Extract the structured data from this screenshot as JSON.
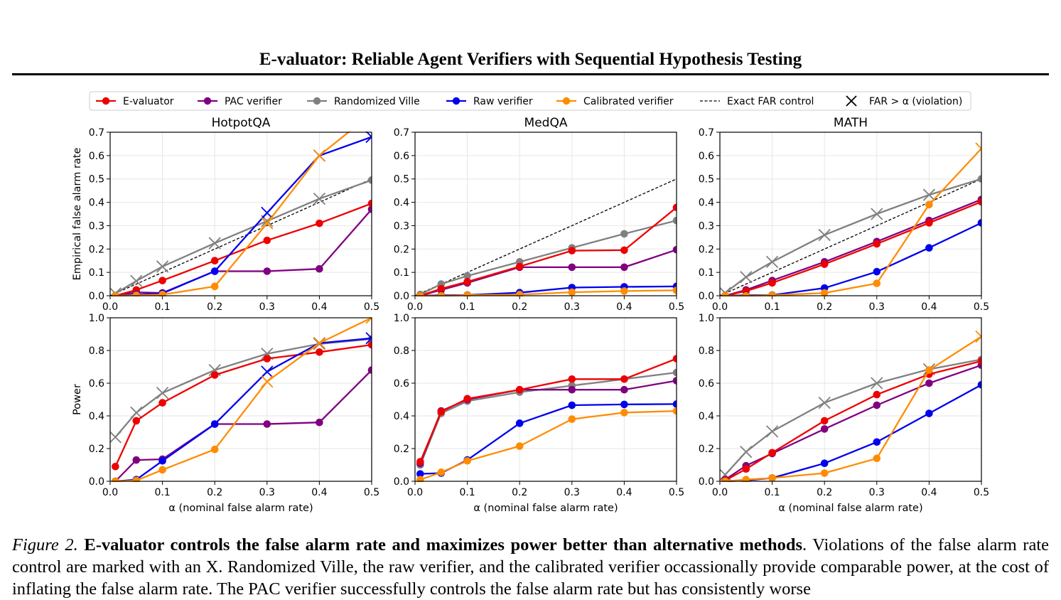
{
  "paper": {
    "running_title": "E-valuator: Reliable Agent Verifiers with Sequential Hypothesis Testing"
  },
  "caption": {
    "label": "Figure 2.",
    "bold": "E-valuator controls the false alarm rate and maximizes power better than alternative methods",
    "text": ". Violations of the false alarm rate control are marked with an X. Randomized Ville, the raw verifier, and the calibrated verifier occassionally provide comparable power, at the cost of inflating the false alarm rate. The PAC verifier successfully controls the false alarm rate but has consistently worse"
  },
  "legend": [
    {
      "label": "E-valuator",
      "color": "#ee0000",
      "kind": "line-marker"
    },
    {
      "label": "PAC verifier",
      "color": "#800080",
      "kind": "line-marker"
    },
    {
      "label": "Randomized Ville",
      "color": "#808080",
      "kind": "line-marker"
    },
    {
      "label": "Raw verifier",
      "color": "#0000ee",
      "kind": "line-marker"
    },
    {
      "label": "Calibrated verifier",
      "color": "#ff8c00",
      "kind": "line-marker"
    },
    {
      "label": "Exact FAR control",
      "color": "#000000",
      "kind": "dashed"
    },
    {
      "label": "FAR > α (violation)",
      "color": "#000000",
      "kind": "x"
    }
  ],
  "chart_data": [
    {
      "type": "line",
      "row": 0,
      "col": 0,
      "title": "HotpotQA",
      "xlabel": "",
      "ylabel": "Empirical false alarm rate",
      "xlim": [
        0,
        0.5
      ],
      "ylim": [
        0,
        0.7
      ],
      "xticks": [
        "0.0",
        "0.1",
        "0.2",
        "0.3",
        "0.4",
        "0.5"
      ],
      "yticks": [
        "0.0",
        "0.1",
        "0.2",
        "0.3",
        "0.4",
        "0.5",
        "0.6",
        "0.7"
      ],
      "x": [
        0.01,
        0.05,
        0.1,
        0.2,
        0.3,
        0.4,
        0.5
      ],
      "diagonal": true,
      "series": [
        {
          "name": "Randomized Ville",
          "color": "#808080",
          "values": [
            0.01,
            0.063,
            0.125,
            0.225,
            0.32,
            0.415,
            0.495
          ],
          "violations": [
            1,
            1,
            1,
            1,
            1,
            1,
            0
          ]
        },
        {
          "name": "PAC verifier",
          "color": "#800080",
          "values": [
            0.0,
            0.015,
            0.012,
            0.105,
            0.105,
            0.115,
            0.37
          ],
          "violations": [
            0,
            0,
            0,
            0,
            0,
            0,
            0
          ]
        },
        {
          "name": "E-valuator",
          "color": "#ee0000",
          "values": [
            0.0,
            0.025,
            0.065,
            0.15,
            0.237,
            0.31,
            0.395
          ],
          "violations": [
            0,
            0,
            0,
            0,
            0,
            0,
            0
          ]
        },
        {
          "name": "Raw verifier",
          "color": "#0000ee",
          "values": [
            0.0,
            0.005,
            0.01,
            0.105,
            0.355,
            0.6,
            0.68
          ],
          "violations": [
            0,
            0,
            0,
            0,
            1,
            1,
            1
          ]
        },
        {
          "name": "Calibrated verifier",
          "color": "#ff8c00",
          "values": [
            0.0,
            0.002,
            0.005,
            0.04,
            0.31,
            0.6,
            0.78
          ],
          "violations": [
            0,
            0,
            0,
            0,
            1,
            1,
            1
          ]
        }
      ]
    },
    {
      "type": "line",
      "row": 0,
      "col": 1,
      "title": "MedQA",
      "xlabel": "",
      "ylabel": "",
      "xlim": [
        0,
        0.5
      ],
      "ylim": [
        0,
        0.7
      ],
      "xticks": [
        "0.0",
        "0.1",
        "0.2",
        "0.3",
        "0.4",
        "0.5"
      ],
      "yticks": [
        "0.0",
        "0.1",
        "0.2",
        "0.3",
        "0.4",
        "0.5",
        "0.6",
        "0.7"
      ],
      "x": [
        0.01,
        0.05,
        0.1,
        0.2,
        0.3,
        0.4,
        0.5
      ],
      "diagonal": true,
      "series": [
        {
          "name": "Randomized Ville",
          "color": "#808080",
          "values": [
            0.005,
            0.05,
            0.085,
            0.145,
            0.205,
            0.265,
            0.322
          ],
          "violations": [
            0,
            0,
            0,
            0,
            0,
            0,
            0
          ]
        },
        {
          "name": "PAC verifier",
          "color": "#800080",
          "values": [
            0.0,
            0.025,
            0.055,
            0.122,
            0.122,
            0.122,
            0.197
          ],
          "violations": [
            0,
            0,
            0,
            0,
            0,
            0,
            0
          ]
        },
        {
          "name": "E-valuator",
          "color": "#ee0000",
          "values": [
            0.0,
            0.03,
            0.06,
            0.125,
            0.193,
            0.195,
            0.378
          ],
          "violations": [
            0,
            0,
            0,
            0,
            0,
            0,
            0
          ]
        },
        {
          "name": "Raw verifier",
          "color": "#0000ee",
          "values": [
            0.0,
            0.002,
            0.003,
            0.013,
            0.035,
            0.038,
            0.04
          ],
          "violations": [
            0,
            0,
            0,
            0,
            0,
            0,
            0
          ]
        },
        {
          "name": "Calibrated verifier",
          "color": "#ff8c00",
          "values": [
            0.0,
            0.0,
            0.002,
            0.005,
            0.015,
            0.02,
            0.023
          ],
          "violations": [
            0,
            0,
            0,
            0,
            0,
            0,
            0
          ]
        }
      ]
    },
    {
      "type": "line",
      "row": 0,
      "col": 2,
      "title": "MATH",
      "xlabel": "",
      "ylabel": "",
      "xlim": [
        0,
        0.5
      ],
      "ylim": [
        0,
        0.7
      ],
      "xticks": [
        "0.0",
        "0.1",
        "0.2",
        "0.3",
        "0.4",
        "0.5"
      ],
      "yticks": [
        "0.0",
        "0.1",
        "0.2",
        "0.3",
        "0.4",
        "0.5",
        "0.6",
        "0.7"
      ],
      "x": [
        0.01,
        0.05,
        0.1,
        0.2,
        0.3,
        0.4,
        0.5
      ],
      "diagonal": true,
      "series": [
        {
          "name": "Randomized Ville",
          "color": "#808080",
          "values": [
            0.012,
            0.08,
            0.145,
            0.26,
            0.35,
            0.432,
            0.5
          ],
          "violations": [
            1,
            1,
            1,
            1,
            1,
            1,
            0
          ]
        },
        {
          "name": "PAC verifier",
          "color": "#800080",
          "values": [
            0.0,
            0.025,
            0.065,
            0.145,
            0.232,
            0.322,
            0.412
          ],
          "violations": [
            0,
            0,
            0,
            0,
            0,
            0,
            0
          ]
        },
        {
          "name": "E-valuator",
          "color": "#ee0000",
          "values": [
            0.0,
            0.02,
            0.055,
            0.135,
            0.222,
            0.312,
            0.402
          ],
          "violations": [
            0,
            0,
            0,
            0,
            0,
            0,
            0
          ]
        },
        {
          "name": "Raw verifier",
          "color": "#0000ee",
          "values": [
            0.0,
            0.002,
            0.003,
            0.033,
            0.103,
            0.205,
            0.312
          ],
          "violations": [
            0,
            0,
            0,
            0,
            0,
            0,
            0
          ]
        },
        {
          "name": "Calibrated verifier",
          "color": "#ff8c00",
          "values": [
            0.0,
            0.0,
            0.002,
            0.012,
            0.053,
            0.39,
            0.63
          ],
          "violations": [
            0,
            0,
            0,
            0,
            0,
            0,
            1
          ]
        }
      ]
    },
    {
      "type": "line",
      "row": 1,
      "col": 0,
      "title": "",
      "xlabel": "α (nominal false alarm rate)",
      "ylabel": "Power",
      "xlim": [
        0,
        0.5
      ],
      "ylim": [
        0,
        1.0
      ],
      "xticks": [
        "0.0",
        "0.1",
        "0.2",
        "0.3",
        "0.4",
        "0.5"
      ],
      "yticks": [
        "0.0",
        "0.2",
        "0.4",
        "0.6",
        "0.8",
        "1.0"
      ],
      "x": [
        0.01,
        0.05,
        0.1,
        0.2,
        0.3,
        0.4,
        0.5
      ],
      "diagonal": false,
      "series": [
        {
          "name": "Randomized Ville",
          "color": "#808080",
          "values": [
            0.27,
            0.42,
            0.54,
            0.68,
            0.78,
            0.84,
            0.87
          ],
          "violations": [
            1,
            1,
            1,
            1,
            1,
            1,
            0
          ]
        },
        {
          "name": "PAC verifier",
          "color": "#800080",
          "values": [
            0.0,
            0.13,
            0.135,
            0.35,
            0.35,
            0.36,
            0.68
          ],
          "violations": [
            0,
            0,
            0,
            0,
            0,
            0,
            0
          ]
        },
        {
          "name": "E-valuator",
          "color": "#ee0000",
          "values": [
            0.09,
            0.37,
            0.48,
            0.65,
            0.75,
            0.79,
            0.835
          ],
          "violations": [
            0,
            0,
            0,
            0,
            0,
            0,
            0
          ]
        },
        {
          "name": "Raw verifier",
          "color": "#0000ee",
          "values": [
            0.0,
            0.01,
            0.125,
            0.35,
            0.67,
            0.845,
            0.875
          ],
          "violations": [
            0,
            0,
            0,
            0,
            1,
            1,
            1
          ]
        },
        {
          "name": "Calibrated verifier",
          "color": "#ff8c00",
          "values": [
            0.0,
            0.005,
            0.07,
            0.195,
            0.61,
            0.845,
            1.0
          ],
          "violations": [
            0,
            0,
            0,
            0,
            1,
            1,
            1
          ]
        }
      ]
    },
    {
      "type": "line",
      "row": 1,
      "col": 1,
      "title": "",
      "xlabel": "α (nominal false alarm rate)",
      "ylabel": "",
      "xlim": [
        0,
        0.5
      ],
      "ylim": [
        0,
        1.0
      ],
      "xticks": [
        "0.0",
        "0.1",
        "0.2",
        "0.3",
        "0.4",
        "0.5"
      ],
      "yticks": [
        "0.0",
        "0.2",
        "0.4",
        "0.6",
        "0.8",
        "1.0"
      ],
      "x": [
        0.01,
        0.05,
        0.1,
        0.2,
        0.3,
        0.4,
        0.5
      ],
      "diagonal": false,
      "series": [
        {
          "name": "Randomized Ville",
          "color": "#808080",
          "values": [
            0.1,
            0.415,
            0.49,
            0.545,
            0.585,
            0.625,
            0.665
          ],
          "violations": [
            0,
            0,
            0,
            0,
            0,
            0,
            0
          ]
        },
        {
          "name": "PAC verifier",
          "color": "#800080",
          "values": [
            0.11,
            0.43,
            0.5,
            0.56,
            0.56,
            0.56,
            0.615
          ],
          "violations": [
            0,
            0,
            0,
            0,
            0,
            0,
            0
          ]
        },
        {
          "name": "E-valuator",
          "color": "#ee0000",
          "values": [
            0.12,
            0.425,
            0.505,
            0.56,
            0.625,
            0.625,
            0.75
          ],
          "violations": [
            0,
            0,
            0,
            0,
            0,
            0,
            0
          ]
        },
        {
          "name": "Raw verifier",
          "color": "#0000ee",
          "values": [
            0.045,
            0.05,
            0.13,
            0.355,
            0.465,
            0.47,
            0.472
          ],
          "violations": [
            0,
            0,
            0,
            0,
            0,
            0,
            0
          ]
        },
        {
          "name": "Calibrated verifier",
          "color": "#ff8c00",
          "values": [
            0.01,
            0.055,
            0.125,
            0.215,
            0.38,
            0.42,
            0.43
          ],
          "violations": [
            0,
            0,
            0,
            0,
            0,
            0,
            0
          ]
        }
      ]
    },
    {
      "type": "line",
      "row": 1,
      "col": 2,
      "title": "",
      "xlabel": "α (nominal false alarm rate)",
      "ylabel": "",
      "xlim": [
        0,
        0.5
      ],
      "ylim": [
        0,
        1.0
      ],
      "xticks": [
        "0.0",
        "0.1",
        "0.2",
        "0.3",
        "0.4",
        "0.5"
      ],
      "yticks": [
        "0.0",
        "0.2",
        "0.4",
        "0.6",
        "0.8",
        "1.0"
      ],
      "x": [
        0.01,
        0.05,
        0.1,
        0.2,
        0.3,
        0.4,
        0.5
      ],
      "diagonal": false,
      "series": [
        {
          "name": "Randomized Ville",
          "color": "#808080",
          "values": [
            0.04,
            0.18,
            0.305,
            0.48,
            0.6,
            0.685,
            0.745
          ],
          "violations": [
            1,
            1,
            1,
            1,
            1,
            1,
            0
          ]
        },
        {
          "name": "PAC verifier",
          "color": "#800080",
          "values": [
            0.01,
            0.095,
            0.17,
            0.32,
            0.465,
            0.6,
            0.71
          ],
          "violations": [
            0,
            0,
            0,
            0,
            0,
            0,
            0
          ]
        },
        {
          "name": "E-valuator",
          "color": "#ee0000",
          "values": [
            0.005,
            0.075,
            0.175,
            0.37,
            0.53,
            0.655,
            0.735
          ],
          "violations": [
            0,
            0,
            0,
            0,
            0,
            0,
            0
          ]
        },
        {
          "name": "Raw verifier",
          "color": "#0000ee",
          "values": [
            0.0,
            0.005,
            0.02,
            0.11,
            0.24,
            0.415,
            0.59
          ],
          "violations": [
            0,
            0,
            0,
            0,
            0,
            0,
            0
          ]
        },
        {
          "name": "Calibrated verifier",
          "color": "#ff8c00",
          "values": [
            0.0,
            0.01,
            0.02,
            0.05,
            0.14,
            0.68,
            0.885
          ],
          "violations": [
            0,
            0,
            0,
            0,
            0,
            0,
            1
          ]
        }
      ]
    }
  ]
}
